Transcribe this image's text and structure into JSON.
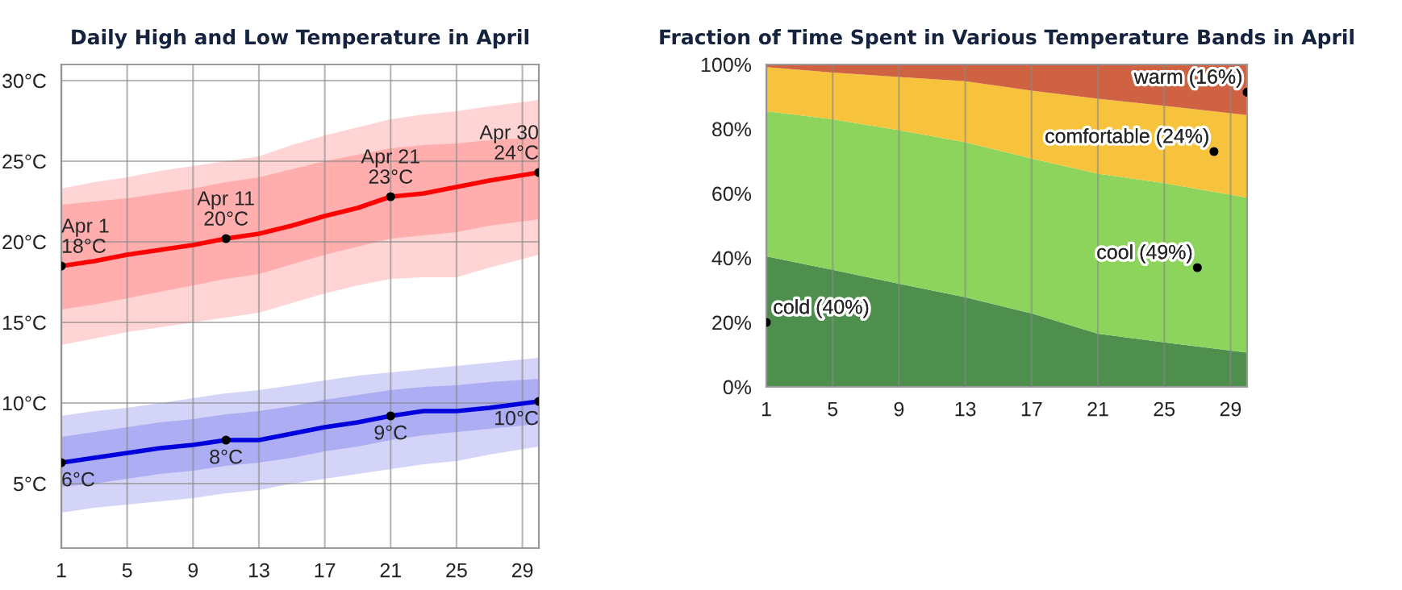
{
  "chart_data": [
    {
      "type": "line",
      "title": "Daily High and Low Temperature in April",
      "xlim": [
        1,
        30
      ],
      "xticks": [
        1,
        5,
        9,
        13,
        17,
        21,
        25,
        29
      ],
      "ylim": [
        1,
        31
      ],
      "yticks": [
        {
          "value": 5,
          "label": "5°C"
        },
        {
          "value": 10,
          "label": "10°C"
        },
        {
          "value": 15,
          "label": "15°C"
        },
        {
          "value": 20,
          "label": "20°C"
        },
        {
          "value": 25,
          "label": "25°C"
        },
        {
          "value": 30,
          "label": "30°C"
        }
      ],
      "grid": true,
      "legend": false,
      "series": [
        {
          "type": "line",
          "color": "#ff0000",
          "x": [
            1,
            3,
            5,
            7,
            9,
            11,
            13,
            15,
            17,
            19,
            21,
            23,
            25,
            27,
            30
          ],
          "values": [
            null,
            null,
            null,
            null,
            null,
            null,
            null,
            null,
            null,
            null,
            null,
            null,
            null,
            null,
            null
          ],
          "lower": [
            13.6,
            14.0,
            14.4,
            14.7,
            15.0,
            15.3,
            15.6,
            16.2,
            16.8,
            17.3,
            17.7,
            17.8,
            17.8,
            18.4,
            19.2
          ],
          "upper": [
            23.3,
            23.7,
            24.0,
            24.4,
            24.7,
            25.0,
            25.3,
            26.0,
            26.6,
            27.1,
            27.6,
            27.9,
            28.1,
            28.4,
            28.8
          ]
        },
        {
          "type": "line",
          "color": "#0000dd",
          "x": [
            1,
            3,
            5,
            7,
            9,
            11,
            13,
            15,
            17,
            19,
            21,
            23,
            25,
            27,
            30
          ],
          "values": [
            null,
            null,
            null,
            null,
            null,
            null,
            null,
            null,
            null,
            null,
            null,
            null,
            null,
            null,
            null
          ],
          "lower": [
            3.2,
            3.5,
            3.7,
            3.9,
            4.1,
            4.4,
            4.6,
            5.0,
            5.3,
            5.6,
            5.9,
            6.2,
            6.4,
            6.8,
            7.3
          ],
          "upper": [
            9.2,
            9.5,
            9.7,
            10.0,
            10.3,
            10.6,
            10.8,
            11.1,
            11.4,
            11.7,
            11.9,
            12.1,
            12.3,
            12.5,
            12.8
          ]
        },
        {
          "type": "line",
          "color": "#ff0000",
          "x": [
            1,
            3,
            5,
            7,
            9,
            11,
            13,
            15,
            17,
            19,
            21,
            23,
            25,
            27,
            30
          ],
          "values": [
            18.5,
            18.8,
            19.2,
            19.5,
            19.8,
            20.2,
            20.5,
            21.0,
            21.6,
            22.1,
            22.8,
            23.0,
            23.4,
            23.8,
            24.3
          ],
          "lower": [
            15.8,
            16.1,
            16.5,
            16.9,
            17.3,
            17.7,
            18.0,
            18.6,
            19.2,
            19.7,
            20.2,
            20.4,
            20.6,
            21.0,
            21.4
          ],
          "upper": [
            22.3,
            22.5,
            22.7,
            23.0,
            23.3,
            23.7,
            24.0,
            24.5,
            25.0,
            25.4,
            25.8,
            26.0,
            26.1,
            26.3,
            26.5
          ]
        },
        {
          "type": "line",
          "color": "#0000dd",
          "x": [
            1,
            3,
            5,
            7,
            9,
            11,
            13,
            15,
            17,
            19,
            21,
            23,
            25,
            27,
            30
          ],
          "values": [
            6.3,
            6.6,
            6.9,
            7.2,
            7.4,
            7.7,
            7.7,
            8.1,
            8.5,
            8.8,
            9.2,
            9.5,
            9.5,
            9.7,
            10.1
          ],
          "lower": [
            4.8,
            5.0,
            5.3,
            5.6,
            5.8,
            6.1,
            6.3,
            6.6,
            7.0,
            7.3,
            7.7,
            8.0,
            8.2,
            8.4,
            8.7
          ],
          "upper": [
            7.9,
            8.2,
            8.5,
            8.8,
            9.0,
            9.3,
            9.5,
            9.8,
            10.2,
            10.5,
            10.8,
            11.0,
            11.1,
            11.3,
            11.5
          ]
        }
      ],
      "annotations": [
        {
          "text": "Apr 1\n18°C",
          "x": 1,
          "y": 18.5
        },
        {
          "text": "Apr 11\n20°C",
          "x": 11,
          "y": 20.2
        },
        {
          "text": "Apr 21\n23°C",
          "x": 21,
          "y": 22.8
        },
        {
          "text": "Apr 30\n24°C",
          "x": 30,
          "y": 24.3
        },
        {
          "text": "6°C",
          "x": 1,
          "y": 6.3
        },
        {
          "text": "8°C",
          "x": 11,
          "y": 7.7
        },
        {
          "text": "9°C",
          "x": 21,
          "y": 9.2
        },
        {
          "text": "10°C",
          "x": 30,
          "y": 10.1
        }
      ]
    },
    {
      "type": "area",
      "stacked": true,
      "title": "Fraction of Time Spent in Various Temperature Bands in April",
      "xlim": [
        1,
        30
      ],
      "xticks": [
        1,
        5,
        9,
        13,
        17,
        21,
        25,
        29
      ],
      "ylim": [
        0,
        100
      ],
      "yticks": [
        {
          "value": 0,
          "label": "0%"
        },
        {
          "value": 20,
          "label": "20%"
        },
        {
          "value": 40,
          "label": "40%"
        },
        {
          "value": 60,
          "label": "60%"
        },
        {
          "value": 80,
          "label": "80%"
        },
        {
          "value": 100,
          "label": "100%"
        }
      ],
      "grid": "x",
      "legend": false,
      "x": [
        1,
        5,
        9,
        13,
        17,
        21,
        25,
        30
      ],
      "series": [
        {
          "color": "#4e8f4e",
          "values": [
            40.5,
            36.3,
            32,
            27.8,
            22.8,
            16.5,
            13.8,
            10.6
          ]
        },
        {
          "color": "#8cd45c",
          "values": [
            45,
            46.7,
            47.6,
            48.1,
            48,
            49.6,
            49.4,
            48.1
          ]
        },
        {
          "color": "#f7c33c",
          "values": [
            13.7,
            14.5,
            16.5,
            18.9,
            21.1,
            23.3,
            24,
            25.6
          ]
        },
        {
          "color": "#cf6243",
          "values": [
            0.8,
            2.5,
            3.9,
            5.2,
            8.1,
            10.6,
            12.8,
            15.7
          ]
        }
      ],
      "annotations": [
        {
          "text": "cold (40%)",
          "x": 1,
          "y": 20
        },
        {
          "text": "cool (49%)",
          "x": 27,
          "y": 37
        },
        {
          "text": "comfortable (24%)",
          "x": 28,
          "y": 73
        },
        {
          "text": "warm (16%)",
          "x": 30,
          "y": 91.4
        }
      ]
    }
  ]
}
